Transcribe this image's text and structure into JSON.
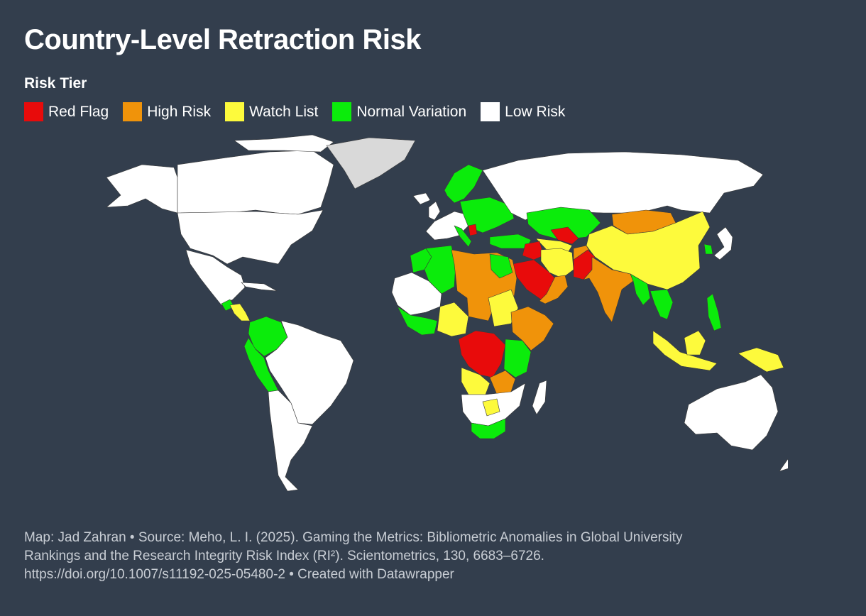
{
  "title": "Country-Level Retraction Risk",
  "legend": {
    "title": "Risk Tier",
    "items": [
      {
        "label": "Red Flag",
        "color": "#e80b0b"
      },
      {
        "label": "High Risk",
        "color": "#f0930a"
      },
      {
        "label": "Watch List",
        "color": "#fdfa3c"
      },
      {
        "label": "Normal Variation",
        "color": "#0bec0b"
      },
      {
        "label": "Low Risk",
        "color": "#ffffff"
      }
    ]
  },
  "colors": {
    "background": "#333e4d",
    "no_data": "#d9d9d9",
    "border": "#3a3a3a"
  },
  "footer": {
    "line1": "Map: Jad Zahran • Source: Meho, L. I. (2025). Gaming the Metrics: Bibliometric Anomalies in Global University",
    "line2": "Rankings and the Research Integrity Risk Index (RI²). Scientometrics, 130, 6683–6726.",
    "line3": "https://doi.org/10.1007/s11192-025-05480-2 • Created with Datawrapper"
  }
}
